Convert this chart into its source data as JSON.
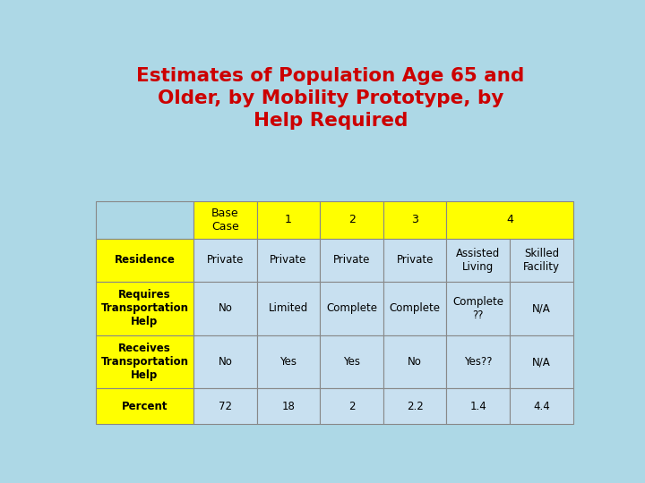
{
  "title": "Estimates of Population Age 65 and\nOlder, by Mobility Prototype, by\nHelp Required",
  "title_color": "#CC0000",
  "background_color": "#ADD8E6",
  "header_bg": "#FFFF00",
  "row_label_bg": "#FFFF00",
  "data_bg": "#C8E0F0",
  "border_color": "#888888",
  "rows": [
    {
      "label": "Residence",
      "values": [
        "Private",
        "Private",
        "Private",
        "Private",
        "Assisted\nLiving",
        "Skilled\nFacility"
      ]
    },
    {
      "label": "Requires\nTransportation\nHelp",
      "values": [
        "No",
        "Limited",
        "Complete",
        "Complete",
        "Complete\n??",
        "N/A"
      ]
    },
    {
      "label": "Receives\nTransportation\nHelp",
      "values": [
        "No",
        "Yes",
        "Yes",
        "No",
        "Yes??",
        "N/A"
      ]
    },
    {
      "label": "Percent",
      "values": [
        "72",
        "18",
        "2",
        "2.2",
        "1.4",
        "4.4"
      ]
    }
  ]
}
